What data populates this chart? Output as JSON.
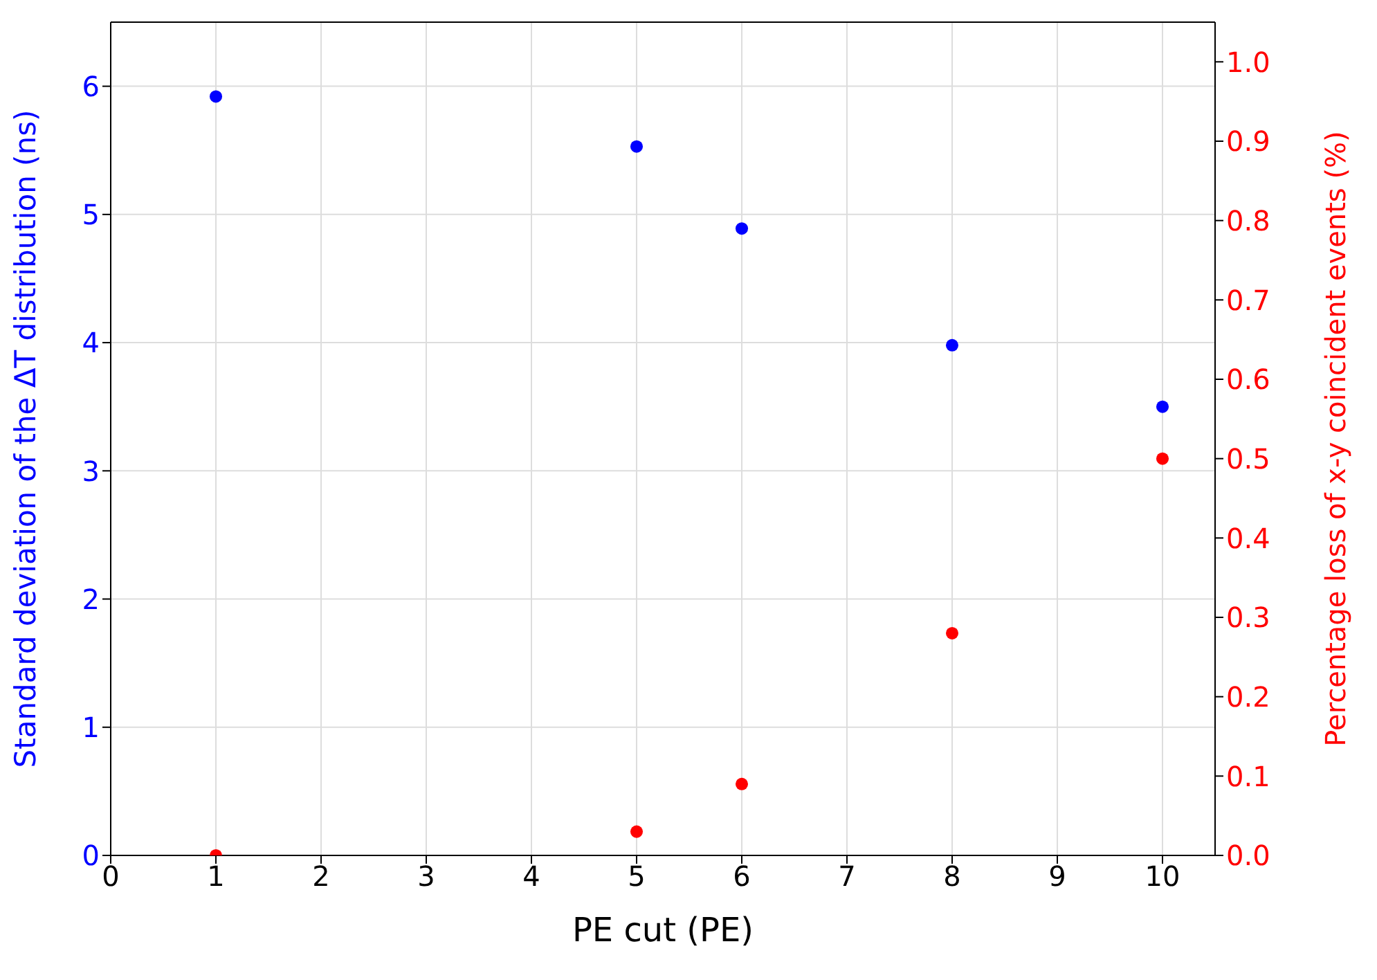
{
  "chart_data": {
    "type": "scatter",
    "xlabel": "PE cut (PE)",
    "ylabel": "Standard deviation of the ΔT distribution (ns)",
    "y2label": "Percentage loss of x-y coincident events (%)",
    "xlim": [
      0,
      10.5
    ],
    "xticks": [
      0,
      1,
      2,
      3,
      4,
      5,
      6,
      7,
      8,
      9,
      10
    ],
    "ylim": [
      0,
      6.5
    ],
    "yticks": [
      0,
      1,
      2,
      3,
      4,
      5,
      6
    ],
    "y2lim": [
      0,
      1.05
    ],
    "y2ticks": [
      {
        "value": 0,
        "label": "0.0"
      },
      0.1,
      0.2,
      0.3,
      0.4,
      0.5,
      0.6,
      0.7,
      0.8,
      0.9,
      {
        "value": 1,
        "label": "1.0"
      }
    ],
    "grid": true,
    "marker": "circle",
    "x": [
      1,
      5,
      6,
      8,
      10
    ],
    "series": [
      {
        "color": "#0000ff",
        "values": [
          5.92,
          5.53,
          4.89,
          3.98,
          3.5
        ]
      },
      {
        "color": "#ff0000",
        "axis": "y2",
        "values": [
          0,
          0.03,
          0.09,
          0.28,
          0.5
        ]
      }
    ]
  }
}
